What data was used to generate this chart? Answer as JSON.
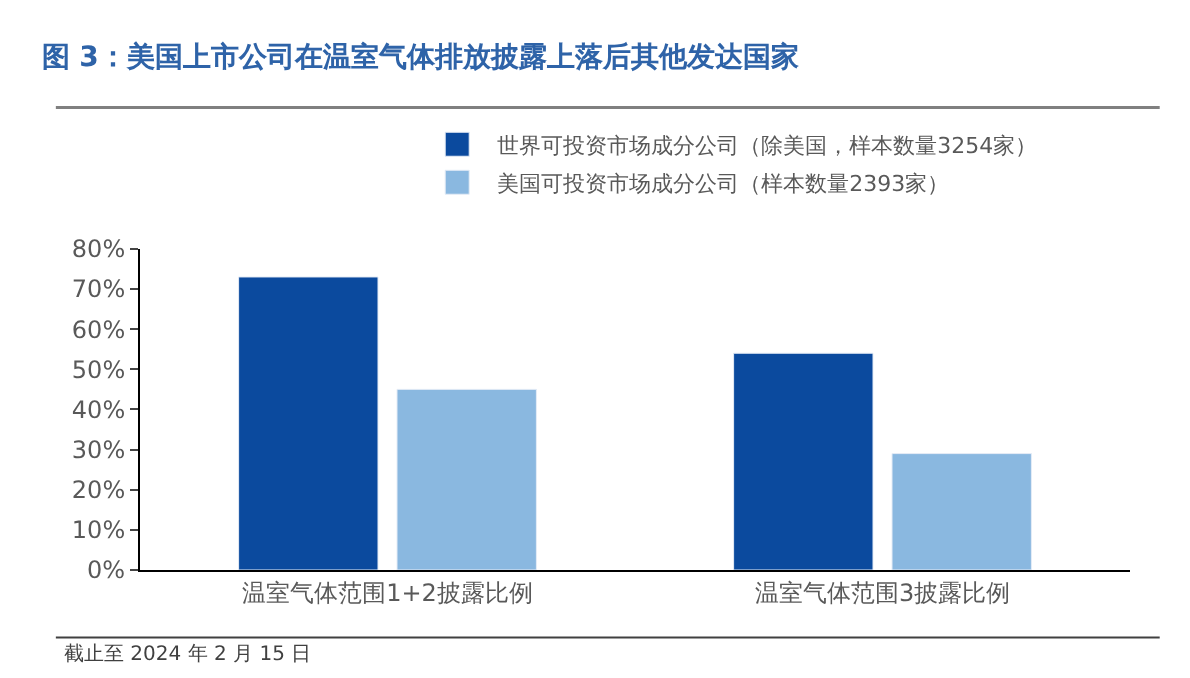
{
  "chart_data": {
    "type": "bar",
    "title": "图 3：美国上市公司在温室气体排放披露上落后其他发达国家",
    "categories": [
      "温室气体范围1+2披露比例",
      "温室气体范围3披露比例"
    ],
    "series": [
      {
        "name": "世界可投资市场成分公司（除美国，样本数量3254家）",
        "color": "#0b4a9e",
        "values": [
          73,
          54
        ]
      },
      {
        "name": "美国可投资市场成分公司（样本数量2393家）",
        "color": "#8ab8e0",
        "values": [
          45,
          29
        ]
      }
    ],
    "ylim": [
      0,
      80
    ],
    "yticks": [
      {
        "value": 0,
        "label": "0%"
      },
      {
        "value": 10,
        "label": "10%"
      },
      {
        "value": 20,
        "label": "20%"
      },
      {
        "value": 30,
        "label": "30%"
      },
      {
        "value": 40,
        "label": "40%"
      },
      {
        "value": 50,
        "label": "50%"
      },
      {
        "value": 60,
        "label": "60%"
      },
      {
        "value": 70,
        "label": "70%"
      },
      {
        "value": 80,
        "label": "80%"
      }
    ],
    "legend": "top",
    "annotations": [
      "截止至 2024 年 2 月 15 日"
    ]
  }
}
